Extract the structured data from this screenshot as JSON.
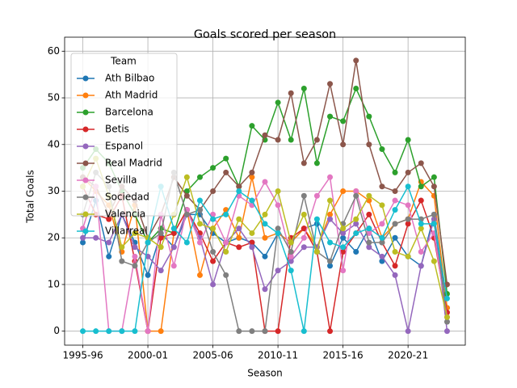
{
  "chart_data": {
    "type": "line",
    "title": "Goals scored per season",
    "x_label": "Season",
    "y_label": "Total Goals",
    "categories": [
      "1995-96",
      null,
      null,
      null,
      null,
      "2000-01",
      null,
      null,
      null,
      null,
      "2005-06",
      null,
      null,
      null,
      null,
      "2010-11",
      null,
      null,
      null,
      null,
      "2015-16",
      null,
      null,
      null,
      null,
      "2020-21",
      null,
      null,
      null
    ],
    "ylim": [
      -3,
      63
    ],
    "yticks": [
      0,
      10,
      20,
      30,
      40,
      50,
      60
    ],
    "grid": true,
    "legend_title": "Team",
    "legend": "upper left",
    "series": [
      {
        "name": "Ath Bilbao",
        "color": "#1f77b4",
        "values": [
          19,
          28,
          16,
          25,
          19,
          12,
          21,
          18,
          25,
          25,
          21,
          19,
          20,
          19,
          16,
          21,
          19,
          22,
          23,
          14,
          20,
          17,
          22,
          15,
          20,
          16,
          14,
          25,
          5
        ]
      },
      {
        "name": "Ath Madrid",
        "color": "#ff7f0e",
        "values": [
          33,
          30,
          27,
          17,
          27,
          0,
          0,
          21,
          26,
          12,
          22,
          26,
          20,
          33,
          20,
          21,
          19,
          22,
          18,
          25,
          30,
          30,
          28,
          20,
          23,
          24,
          32,
          29,
          5
        ]
      },
      {
        "name": "Barcelona",
        "color": "#2ca02c",
        "values": [
          35,
          39,
          36,
          30,
          25,
          19,
          22,
          21,
          30,
          33,
          35,
          37,
          31,
          44,
          41,
          49,
          41,
          52,
          36,
          46,
          45,
          52,
          46,
          39,
          34,
          41,
          31,
          33,
          8
        ]
      },
      {
        "name": "Betis",
        "color": "#d62728",
        "values": [
          31,
          25,
          24,
          29,
          15,
          0,
          20,
          21,
          26,
          21,
          15,
          19,
          18,
          19,
          0,
          0,
          20,
          22,
          17,
          0,
          17,
          21,
          25,
          19,
          14,
          23,
          28,
          20,
          4
        ]
      },
      {
        "name": "Espanol",
        "color": "#9467bd",
        "values": [
          20,
          20,
          19,
          25,
          18,
          16,
          13,
          18,
          26,
          20,
          10,
          19,
          22,
          18,
          9,
          13,
          15,
          18,
          18,
          24,
          21,
          23,
          18,
          16,
          12,
          0,
          14,
          24,
          0
        ]
      },
      {
        "name": "Real Madrid",
        "color": "#8c564b",
        "values": [
          33,
          31,
          25,
          31,
          28,
          20,
          25,
          33,
          29,
          26,
          30,
          34,
          31,
          34,
          42,
          41,
          51,
          36,
          41,
          53,
          40,
          58,
          40,
          31,
          30,
          34,
          36,
          31,
          10
        ]
      },
      {
        "name": "Sevilla",
        "color": "#e377c2",
        "values": [
          22,
          31,
          0,
          0,
          16,
          0,
          25,
          14,
          26,
          19,
          25,
          19,
          29,
          27,
          32,
          27,
          16,
          20,
          29,
          33,
          13,
          30,
          21,
          23,
          28,
          27,
          17,
          21,
          3
        ]
      },
      {
        "name": "Sociedad",
        "color": "#7f7f7f",
        "values": [
          25,
          34,
          31,
          15,
          14,
          19,
          21,
          34,
          25,
          26,
          17,
          12,
          0,
          0,
          0,
          22,
          17,
          29,
          17,
          15,
          23,
          29,
          19,
          19,
          23,
          24,
          24,
          25,
          2
        ]
      },
      {
        "name": "Valencia",
        "color": "#bcbd22",
        "values": [
          31,
          37,
          29,
          18,
          21,
          20,
          18,
          25,
          33,
          23,
          22,
          17,
          24,
          21,
          25,
          30,
          19,
          25,
          17,
          28,
          22,
          24,
          29,
          27,
          17,
          16,
          22,
          15,
          3
        ]
      },
      {
        "name": "Villarreal",
        "color": "#17becf",
        "values": [
          0,
          0,
          0,
          0,
          0,
          19,
          31,
          22,
          19,
          28,
          24,
          25,
          30,
          28,
          23,
          21,
          13,
          0,
          24,
          19,
          18,
          21,
          22,
          20,
          26,
          31,
          23,
          23,
          7
        ]
      }
    ]
  }
}
